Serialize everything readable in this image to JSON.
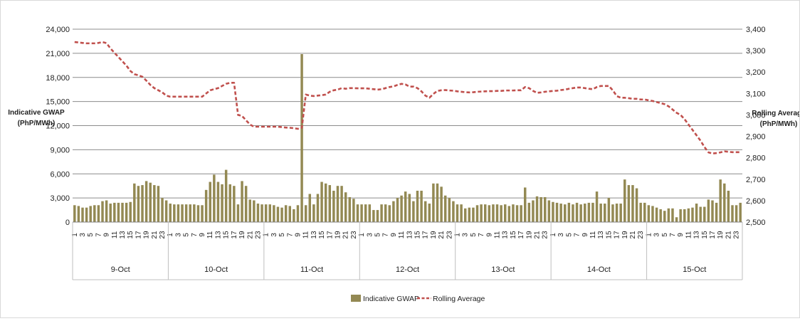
{
  "chart_data": {
    "type": "bar",
    "title": "",
    "y_left_label": [
      "Indicative GWAP",
      "(PhP/MWh)"
    ],
    "y_right_label": [
      "Rolling Average",
      "(PhP/MWh)"
    ],
    "ylim_left": [
      0,
      24000
    ],
    "yticks_left": [
      "0",
      "3,000",
      "6,000",
      "9,000",
      "12,000",
      "15,000",
      "18,000",
      "21,000",
      "24,000"
    ],
    "ylim_right": [
      2500,
      3400
    ],
    "yticks_right": [
      "2,500",
      "2,600",
      "2,700",
      "2,800",
      "2,900",
      "3,000",
      "3,100",
      "3,200",
      "3,300",
      "3,400"
    ],
    "hour_labels": [
      "1",
      "3",
      "5",
      "7",
      "9",
      "11",
      "13",
      "15",
      "17",
      "19",
      "21",
      "23"
    ],
    "days": [
      "9-Oct",
      "10-Oct",
      "11-Oct",
      "12-Oct",
      "13-Oct",
      "14-Oct",
      "15-Oct"
    ],
    "colors": {
      "bar": "#938953",
      "line": "#c0504d",
      "grid": "#8c8c8c"
    },
    "series": [
      {
        "name": "Indicative GWAP",
        "kind": "bar",
        "axis": "left",
        "values": [
          2100,
          2000,
          1800,
          1800,
          2000,
          2100,
          2100,
          2600,
          2700,
          2300,
          2400,
          2400,
          2400,
          2400,
          2500,
          4800,
          4500,
          4600,
          5100,
          4900,
          4600,
          4500,
          3000,
          2700,
          2300,
          2200,
          2200,
          2200,
          2200,
          2200,
          2200,
          2100,
          2100,
          4000,
          5000,
          5900,
          5000,
          4700,
          6500,
          4700,
          4500,
          2200,
          5100,
          4500,
          2800,
          2700,
          2300,
          2200,
          2200,
          2200,
          2100,
          1900,
          1800,
          2100,
          2000,
          1600,
          2100,
          20900,
          2100,
          3500,
          2200,
          3500,
          5000,
          4800,
          4600,
          3900,
          4500,
          4500,
          3700,
          3100,
          2900,
          2200,
          2200,
          2200,
          2200,
          1500,
          1500,
          2200,
          2200,
          2100,
          2600,
          3000,
          3300,
          3800,
          3500,
          2600,
          3900,
          3900,
          2600,
          2300,
          4800,
          4800,
          4400,
          3300,
          3000,
          2600,
          2200,
          2200,
          1700,
          1800,
          1800,
          2100,
          2200,
          2200,
          2100,
          2200,
          2200,
          2100,
          2200,
          2000,
          2200,
          2100,
          2100,
          4300,
          2400,
          2700,
          3200,
          3100,
          3100,
          2700,
          2500,
          2400,
          2300,
          2200,
          2400,
          2200,
          2400,
          2200,
          2300,
          2400,
          2400,
          3800,
          2300,
          2300,
          3000,
          2200,
          2300,
          2300,
          5300,
          4600,
          4600,
          4200,
          2400,
          2400,
          2100,
          2000,
          1800,
          1600,
          1400,
          1700,
          1700,
          600,
          1600,
          1600,
          1700,
          1800,
          2300,
          1900,
          1900,
          2800,
          2700,
          2400,
          5300,
          4800,
          3900,
          2100,
          2100,
          2400
        ]
      },
      {
        "name": "Rolling Average",
        "kind": "line",
        "axis": "right",
        "values": [
          3340,
          3338,
          3336,
          3334,
          3334,
          3334,
          3336,
          3340,
          3335,
          3310,
          3290,
          3270,
          3250,
          3230,
          3205,
          3190,
          3185,
          3178,
          3160,
          3140,
          3125,
          3115,
          3105,
          3090,
          3085,
          3085,
          3085,
          3085,
          3085,
          3085,
          3085,
          3085,
          3085,
          3100,
          3115,
          3120,
          3125,
          3135,
          3145,
          3150,
          3150,
          3000,
          2995,
          2975,
          2955,
          2945,
          2945,
          2945,
          2945,
          2945,
          2945,
          2945,
          2943,
          2941,
          2940,
          2938,
          2935,
          2940,
          3095,
          3090,
          3088,
          3090,
          3092,
          3095,
          3108,
          3115,
          3118,
          3125,
          3122,
          3125,
          3125,
          3124,
          3124,
          3124,
          3122,
          3120,
          3118,
          3120,
          3125,
          3130,
          3133,
          3140,
          3145,
          3142,
          3132,
          3132,
          3125,
          3110,
          3090,
          3080,
          3098,
          3112,
          3115,
          3116,
          3114,
          3113,
          3110,
          3108,
          3106,
          3105,
          3106,
          3108,
          3109,
          3110,
          3111,
          3111,
          3112,
          3112,
          3114,
          3114,
          3114,
          3115,
          3115,
          3130,
          3125,
          3112,
          3103,
          3105,
          3108,
          3110,
          3112,
          3113,
          3116,
          3118,
          3122,
          3125,
          3128,
          3128,
          3125,
          3122,
          3120,
          3130,
          3135,
          3135,
          3135,
          3115,
          3088,
          3080,
          3080,
          3078,
          3075,
          3075,
          3072,
          3072,
          3068,
          3065,
          3060,
          3055,
          3050,
          3040,
          3025,
          3010,
          3000,
          2980,
          2955,
          2930,
          2905,
          2880,
          2850,
          2825,
          2820,
          2822,
          2825,
          2830,
          2828,
          2826,
          2826,
          2826
        ]
      }
    ],
    "legend": {
      "placement": "bottom-center"
    }
  }
}
